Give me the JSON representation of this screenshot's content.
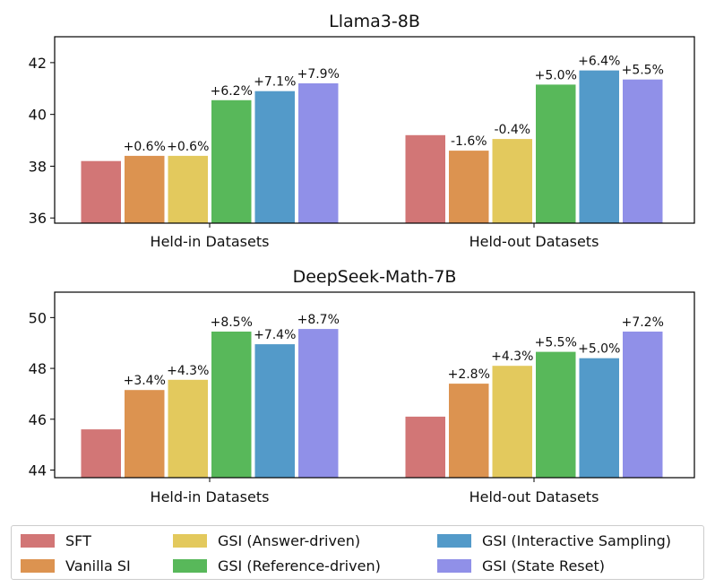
{
  "colors": {
    "SFT": "#d27676",
    "Vanilla SI": "#dc9350",
    "GSI (Answer-driven)": "#e3c95d",
    "GSI (Reference-driven)": "#58b85a",
    "GSI (Interactive Sampling)": "#539ac9",
    "GSI (State Reset)": "#9090e8"
  },
  "legend": [
    {
      "label": "SFT"
    },
    {
      "label": "Vanilla SI"
    },
    {
      "label": "GSI (Answer-driven)"
    },
    {
      "label": "GSI (Reference-driven)"
    },
    {
      "label": "GSI (Interactive Sampling)"
    },
    {
      "label": "GSI (State Reset)"
    }
  ],
  "chart_data": [
    {
      "type": "bar",
      "title": "Llama3-8B",
      "categories": [
        "Held-in Datasets",
        "Held-out Datasets"
      ],
      "ylim": [
        35.8,
        43.0
      ],
      "yticks": [
        36,
        38,
        40,
        42
      ],
      "grid": false,
      "series": [
        {
          "name": "SFT",
          "values": [
            38.2,
            39.2
          ],
          "labels": [
            "",
            ""
          ]
        },
        {
          "name": "Vanilla SI",
          "values": [
            38.4,
            38.6
          ],
          "labels": [
            "+0.6%",
            "-1.6%"
          ]
        },
        {
          "name": "GSI (Answer-driven)",
          "values": [
            38.4,
            39.05
          ],
          "labels": [
            "+0.6%",
            "-0.4%"
          ]
        },
        {
          "name": "GSI (Reference-driven)",
          "values": [
            40.55,
            41.15
          ],
          "labels": [
            "+6.2%",
            "+5.0%"
          ]
        },
        {
          "name": "GSI (Interactive Sampling)",
          "values": [
            40.9,
            41.7
          ],
          "labels": [
            "+7.1%",
            "+6.4%"
          ]
        },
        {
          "name": "GSI (State Reset)",
          "values": [
            41.2,
            41.35
          ],
          "labels": [
            "+7.9%",
            "+5.5%"
          ]
        }
      ]
    },
    {
      "type": "bar",
      "title": "DeepSeek-Math-7B",
      "categories": [
        "Held-in Datasets",
        "Held-out Datasets"
      ],
      "ylim": [
        43.7,
        51.0
      ],
      "yticks": [
        44,
        46,
        48,
        50
      ],
      "grid": false,
      "series": [
        {
          "name": "SFT",
          "values": [
            45.6,
            46.1
          ],
          "labels": [
            "",
            ""
          ]
        },
        {
          "name": "Vanilla SI",
          "values": [
            47.15,
            47.4
          ],
          "labels": [
            "+3.4%",
            "+2.8%"
          ]
        },
        {
          "name": "GSI (Answer-driven)",
          "values": [
            47.55,
            48.1
          ],
          "labels": [
            "+4.3%",
            "+4.3%"
          ]
        },
        {
          "name": "GSI (Reference-driven)",
          "values": [
            49.45,
            48.65
          ],
          "labels": [
            "+8.5%",
            "+5.5%"
          ]
        },
        {
          "name": "GSI (Interactive Sampling)",
          "values": [
            48.95,
            48.4
          ],
          "labels": [
            "+7.4%",
            "+5.0%"
          ]
        },
        {
          "name": "GSI (State Reset)",
          "values": [
            49.55,
            49.45
          ],
          "labels": [
            "+8.7%",
            "+7.2%"
          ]
        }
      ]
    }
  ]
}
